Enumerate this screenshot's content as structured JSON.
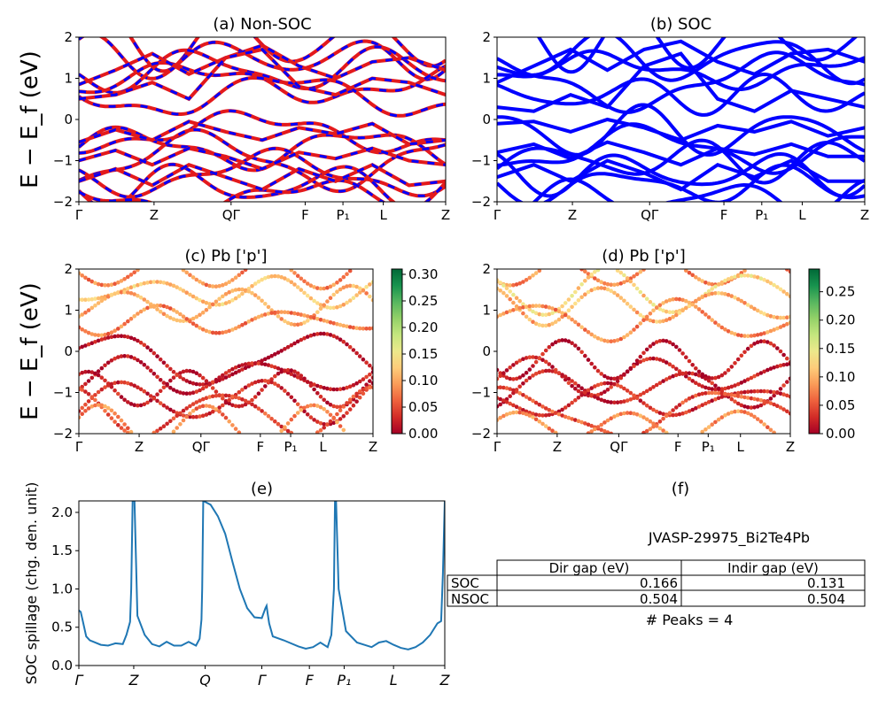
{
  "ylabel_band": "E − E_f (eV)",
  "kpath": [
    "Γ",
    "Z",
    "QΓ",
    "F",
    "P₁",
    "L",
    "Z"
  ],
  "kpath_e": [
    "Γ",
    "Z",
    "Q",
    "Γ",
    "F",
    "P₁",
    "L",
    "Z"
  ],
  "panel_f_title": "(f)",
  "panel_f_material": "JVASP-29975_Bi2Te4Pb",
  "gap_table": {
    "header": [
      "",
      "Dir gap (eV)",
      "Indir gap (eV)"
    ],
    "rows": [
      {
        "label": "SOC",
        "dir": "0.166",
        "indir": "0.131"
      },
      {
        "label": "NSOC",
        "dir": "0.504",
        "indir": "0.504"
      }
    ]
  },
  "peaks_text": "# Peaks = 4",
  "colors": {
    "blue": "#0000ff",
    "red": "#e31a1c",
    "spill": "#1f77b4"
  },
  "chart_data": [
    {
      "id": "a",
      "type": "line",
      "title": "(a) Non-SOC",
      "ylabel": "E − E_f (eV)",
      "ylim": [
        -2,
        2
      ],
      "yticks": [
        -2,
        -1,
        0,
        1,
        2
      ],
      "xticks": [
        "Γ",
        "Z",
        "QΓ",
        "F",
        "P₁",
        "L",
        "Z"
      ],
      "series_note": "red solid bands overlaid with blue dashed bands",
      "bands": [
        {
          "x": [
            0,
            0.1,
            0.2,
            0.3,
            0.4,
            0.5,
            0.6,
            0.7,
            0.8,
            0.9,
            1
          ],
          "y": [
            0.85,
            1.2,
            1.6,
            1.1,
            1.5,
            1.8,
            1.3,
            1.0,
            1.4,
            1.5,
            1.2
          ]
        },
        {
          "x": [
            0,
            0.1,
            0.2,
            0.3,
            0.4,
            0.5,
            0.6,
            0.7,
            0.8,
            0.9,
            1
          ],
          "y": [
            0.5,
            0.6,
            0.9,
            0.5,
            1.5,
            1.7,
            0.8,
            0.6,
            1.0,
            0.9,
            0.6
          ]
        },
        {
          "x": [
            0,
            0.1,
            0.2,
            0.3,
            0.4,
            0.5,
            0.6,
            0.7,
            0.8,
            0.9,
            1
          ],
          "y": [
            -0.55,
            -0.25,
            -0.5,
            -0.05,
            -0.3,
            -0.5,
            -0.2,
            -0.35,
            -0.1,
            -0.6,
            -0.5
          ]
        },
        {
          "x": [
            0,
            0.1,
            0.2,
            0.3,
            0.4,
            0.5,
            0.6,
            0.7,
            0.8,
            0.9,
            1
          ],
          "y": [
            -1.0,
            -0.75,
            -1.1,
            -0.7,
            -0.9,
            -1.2,
            -0.8,
            -0.95,
            -0.7,
            -1.0,
            -1.1
          ]
        },
        {
          "x": [
            0,
            0.1,
            0.2,
            0.3,
            0.4,
            0.5,
            0.6,
            0.7,
            0.8,
            0.9,
            1
          ],
          "y": [
            -1.5,
            -1.2,
            -1.6,
            -1.1,
            -1.4,
            -1.7,
            -1.2,
            -1.5,
            -1.1,
            -1.6,
            -1.5
          ]
        }
      ]
    },
    {
      "id": "b",
      "type": "line",
      "title": "(b) SOC",
      "ylim": [
        -2,
        2
      ],
      "yticks": [
        -2,
        -1,
        0,
        1,
        2
      ],
      "xticks": [
        "Γ",
        "Z",
        "QΓ",
        "F",
        "P₁",
        "L",
        "Z"
      ],
      "bands": [
        {
          "x": [
            0,
            0.1,
            0.2,
            0.3,
            0.4,
            0.5,
            0.6,
            0.7,
            0.8,
            0.9,
            1
          ],
          "y": [
            0.3,
            0.2,
            0.6,
            0.3,
            1.3,
            1.6,
            0.5,
            0.2,
            0.7,
            0.5,
            0.3
          ]
        },
        {
          "x": [
            0,
            0.1,
            0.2,
            0.3,
            0.4,
            0.5,
            0.6,
            0.7,
            0.8,
            0.9,
            1
          ],
          "y": [
            0.9,
            1.3,
            1.7,
            1.2,
            1.7,
            1.9,
            1.4,
            1.1,
            1.6,
            1.7,
            1.4
          ]
        },
        {
          "x": [
            0,
            0.1,
            0.2,
            0.3,
            0.4,
            0.5,
            0.6,
            0.7,
            0.8,
            0.9,
            1
          ],
          "y": [
            -0.1,
            -0.05,
            -0.3,
            0.0,
            -0.2,
            -0.5,
            -0.15,
            -0.3,
            -0.05,
            -0.4,
            -0.2
          ]
        },
        {
          "x": [
            0,
            0.1,
            0.2,
            0.3,
            0.4,
            0.5,
            0.6,
            0.7,
            0.8,
            0.9,
            1
          ],
          "y": [
            -0.8,
            -0.6,
            -0.95,
            -0.55,
            -0.8,
            -1.1,
            -0.7,
            -0.85,
            -0.6,
            -0.9,
            -0.9
          ]
        },
        {
          "x": [
            0,
            0.1,
            0.2,
            0.3,
            0.4,
            0.5,
            0.6,
            0.7,
            0.8,
            0.9,
            1
          ],
          "y": [
            -1.4,
            -1.1,
            -1.5,
            -1.0,
            -1.3,
            -1.7,
            -1.1,
            -1.4,
            -1.0,
            -1.5,
            -1.5
          ]
        }
      ]
    },
    {
      "id": "c",
      "type": "scatter",
      "title": "(c)  Pb ['p']",
      "ylabel": "E − E_f (eV)",
      "ylim": [
        -2,
        2
      ],
      "yticks": [
        -2,
        -1,
        0,
        1,
        2
      ],
      "xticks": [
        "Γ",
        "Z",
        "QΓ",
        "F",
        "P₁",
        "L",
        "Z"
      ],
      "colorbar": {
        "min": 0.0,
        "max": 0.31,
        "ticks": [
          "0.00",
          "0.05",
          "0.10",
          "0.15",
          "0.20",
          "0.25",
          "0.30"
        ],
        "cmap": "RdYlGn"
      },
      "note": "points colored by Pb p-orbital weight along the bands"
    },
    {
      "id": "d",
      "type": "scatter",
      "title": "(d) Pb ['p']",
      "ylim": [
        -2,
        2
      ],
      "yticks": [
        -2,
        -1,
        0,
        1,
        2
      ],
      "xticks": [
        "Γ",
        "Z",
        "QΓ",
        "F",
        "P₁",
        "L",
        "Z"
      ],
      "colorbar": {
        "min": 0.0,
        "max": 0.29,
        "ticks": [
          "0.00",
          "0.05",
          "0.10",
          "0.15",
          "0.20",
          "0.25"
        ],
        "cmap": "RdYlGn"
      }
    },
    {
      "id": "e",
      "type": "line",
      "title": "(e)",
      "ylabel": "SOC spillage (chg. den. unit)",
      "ylim": [
        0,
        2.15
      ],
      "yticks": [
        "0.0",
        "0.5",
        "1.0",
        "1.5",
        "2.0"
      ],
      "xticks": [
        "Γ",
        "Z",
        "Q",
        "Γ",
        "F",
        "P₁",
        "L",
        "Z"
      ],
      "x": [
        0.0,
        0.005,
        0.01,
        0.02,
        0.03,
        0.04,
        0.06,
        0.08,
        0.1,
        0.12,
        0.13,
        0.14,
        0.143,
        0.147,
        0.152,
        0.16,
        0.18,
        0.2,
        0.22,
        0.24,
        0.26,
        0.28,
        0.3,
        0.32,
        0.33,
        0.335,
        0.337,
        0.34,
        0.36,
        0.38,
        0.4,
        0.42,
        0.44,
        0.46,
        0.48,
        0.5,
        0.51,
        0.513,
        0.516,
        0.52,
        0.53,
        0.56,
        0.6,
        0.62,
        0.64,
        0.66,
        0.68,
        0.69,
        0.697,
        0.7,
        0.703,
        0.71,
        0.73,
        0.76,
        0.78,
        0.8,
        0.82,
        0.84,
        0.86,
        0.88,
        0.9,
        0.92,
        0.94,
        0.96,
        0.98,
        0.99,
        0.995,
        1.0
      ],
      "y": [
        0.72,
        0.7,
        0.6,
        0.38,
        0.33,
        0.31,
        0.27,
        0.26,
        0.29,
        0.28,
        0.4,
        0.57,
        1.0,
        2.15,
        2.15,
        0.65,
        0.4,
        0.28,
        0.25,
        0.31,
        0.26,
        0.26,
        0.31,
        0.26,
        0.35,
        0.6,
        1.0,
        2.15,
        2.1,
        1.95,
        1.72,
        1.35,
        1.0,
        0.75,
        0.63,
        0.62,
        0.75,
        0.78,
        0.68,
        0.55,
        0.38,
        0.33,
        0.25,
        0.22,
        0.24,
        0.3,
        0.24,
        0.4,
        1.0,
        2.15,
        2.15,
        1.0,
        0.45,
        0.3,
        0.27,
        0.24,
        0.3,
        0.32,
        0.27,
        0.23,
        0.21,
        0.24,
        0.3,
        0.4,
        0.55,
        0.58,
        1.2,
        2.15
      ],
      "grid": false
    }
  ]
}
